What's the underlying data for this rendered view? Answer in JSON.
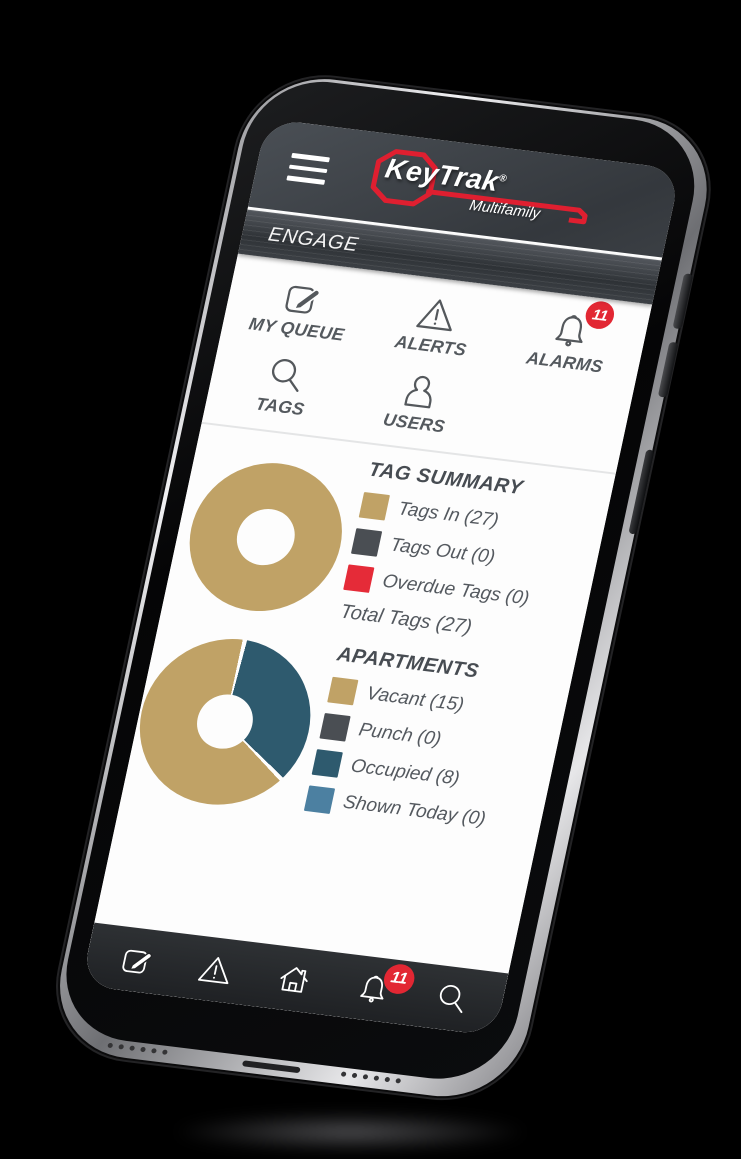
{
  "header": {
    "menu_icon": "hamburger-icon",
    "brand": "KeyTrak",
    "registered": "®",
    "brand_sub": "Multifamily"
  },
  "engage_bar": {
    "title": "ENGAGE"
  },
  "quick_nav": {
    "row1": [
      {
        "label": "MY QUEUE",
        "icon": "edit-icon"
      },
      {
        "label": "ALERTS",
        "icon": "warning-icon"
      },
      {
        "label": "ALARMS",
        "icon": "bell-icon",
        "badge": "11"
      }
    ],
    "row2": [
      {
        "label": "TAGS",
        "icon": "search-icon"
      },
      {
        "label": "USERS",
        "icon": "user-icon"
      }
    ]
  },
  "tag_summary": {
    "title": "TAG SUMMARY",
    "legend": [
      {
        "label": "Tags In (27)",
        "color": "#c0a266"
      },
      {
        "label": "Tags Out (0)",
        "color": "#4a4e53"
      },
      {
        "label": "Overdue Tags (0)",
        "color": "#e52b38"
      }
    ],
    "total": "Total Tags (27)"
  },
  "apartments": {
    "title": "APARTMENTS",
    "legend": [
      {
        "label": "Vacant (15)",
        "color": "#c0a266"
      },
      {
        "label": "Punch (0)",
        "color": "#4a4e53"
      },
      {
        "label": "Occupied (8)",
        "color": "#2e5a6e"
      },
      {
        "label": "Shown Today (0)",
        "color": "#4c80a1"
      }
    ]
  },
  "bottom_nav": [
    {
      "icon": "edit-icon"
    },
    {
      "icon": "warning-icon"
    },
    {
      "icon": "home-icon"
    },
    {
      "icon": "bell-icon",
      "badge": "11"
    },
    {
      "icon": "search-icon"
    }
  ],
  "colors": {
    "gold": "#c0a266",
    "dark_gray": "#4a4e53",
    "red": "#e52b38",
    "teal": "#2e5a6e",
    "blue": "#4c80a1",
    "logo_red": "#df1f30",
    "badge_red": "#e22733"
  },
  "chart_data": [
    {
      "id": "tag-summary-donut",
      "type": "pie",
      "title": "TAG SUMMARY",
      "hole": 0.38,
      "gap_deg": 0,
      "slices": [
        {
          "label": "Tags In",
          "value": 27,
          "color": "#c0a266"
        },
        {
          "label": "Tags Out",
          "value": 0,
          "color": "#4a4e53"
        },
        {
          "label": "Overdue Tags",
          "value": 0,
          "color": "#e52b38"
        }
      ],
      "total": 27,
      "legend_position": "right"
    },
    {
      "id": "apartments-donut",
      "type": "pie",
      "title": "APARTMENTS",
      "hole": 0.33,
      "gap_deg": 3,
      "slices": [
        {
          "label": "Occupied",
          "value": 8,
          "color": "#2e5a6e"
        },
        {
          "label": "Vacant",
          "value": 15,
          "color": "#c0a266"
        },
        {
          "label": "Punch",
          "value": 0,
          "color": "#4a4e53"
        },
        {
          "label": "Shown Today",
          "value": 0,
          "color": "#4c80a1"
        }
      ],
      "total": 23,
      "legend_position": "right"
    }
  ]
}
